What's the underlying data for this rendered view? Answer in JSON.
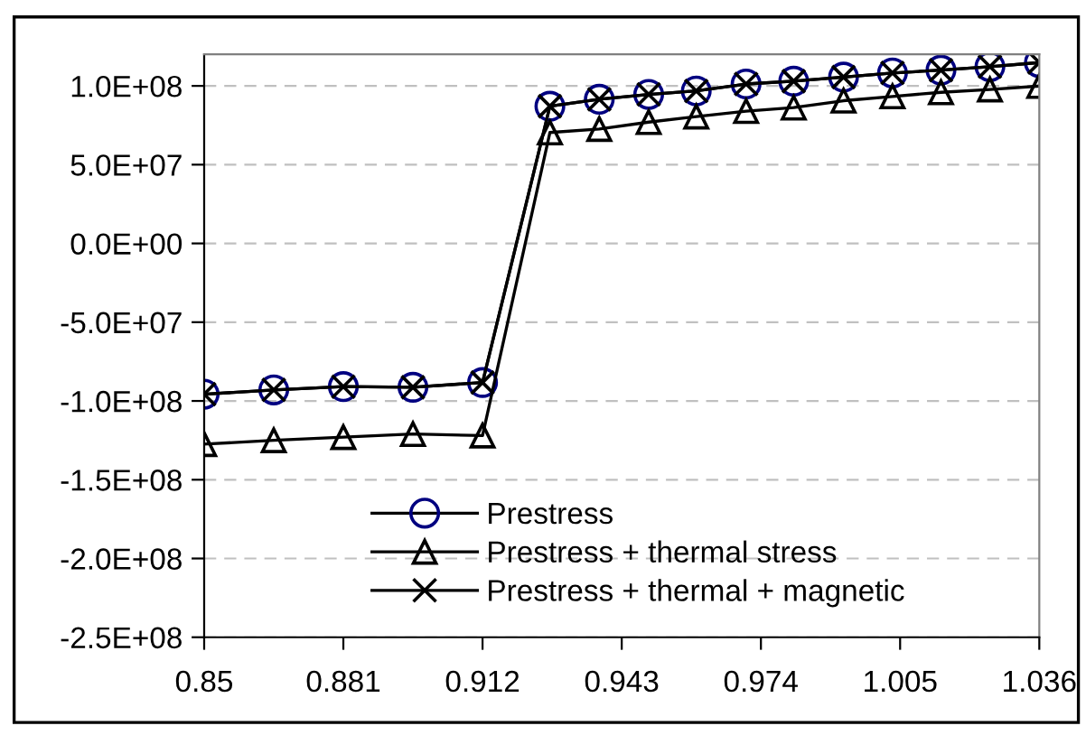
{
  "chart_data": {
    "type": "line",
    "x": [
      0.85,
      0.8655,
      0.881,
      0.8965,
      0.912,
      0.927,
      0.938,
      0.949,
      0.9596,
      0.9707,
      0.9813,
      0.9924,
      1.0033,
      1.0141,
      1.025,
      1.036
    ],
    "series": [
      {
        "name": "Prestress",
        "color": "#000080",
        "marker": "circle",
        "values": [
          -95700000.0,
          -93000000.0,
          -90900000.0,
          -91300000.0,
          -88300000.0,
          87100000.0,
          91500000.0,
          94600000.0,
          96800000.0,
          101200000.0,
          103000000.0,
          105600000.0,
          108200000.0,
          110000000.0,
          112200000.0,
          114800000.0
        ]
      },
      {
        "name": "Prestress + thermal stress",
        "color": "#000000",
        "marker": "triangle",
        "values": [
          -127400000.0,
          -125000000.0,
          -123000000.0,
          -121000000.0,
          -122000000.0,
          70400000.0,
          72600000.0,
          77000000.0,
          80500000.0,
          84000000.0,
          86200000.0,
          90600000.0,
          93300000.0,
          95900000.0,
          97700000.0,
          99900000.0
        ]
      },
      {
        "name": "Prestress + thermal + magnetic",
        "color": "#000000",
        "marker": "cross",
        "values": [
          -95700000.0,
          -93000000.0,
          -90900000.0,
          -91300000.0,
          -88300000.0,
          87100000.0,
          91500000.0,
          94600000.0,
          96800000.0,
          101200000.0,
          103000000.0,
          105600000.0,
          108200000.0,
          110000000.0,
          112200000.0,
          114800000.0
        ]
      }
    ],
    "xlim": [
      0.85,
      1.036
    ],
    "xticks": [
      0.85,
      0.881,
      0.912,
      0.943,
      0.974,
      1.005,
      1.036
    ],
    "ylim": [
      -250000000.0,
      120000000.0
    ],
    "yticks": [
      {
        "value": -250000000.0,
        "label": "-2.5E+08"
      },
      {
        "value": -200000000.0,
        "label": "-2.0E+08"
      },
      {
        "value": -150000000.0,
        "label": "-1.5E+08"
      },
      {
        "value": -100000000.0,
        "label": "-1.0E+08"
      },
      {
        "value": -50000000.0,
        "label": "-5.0E+07"
      },
      {
        "value": 0,
        "label": "0.0E+00"
      },
      {
        "value": 50000000.0,
        "label": "5.0E+07"
      },
      {
        "value": 100000000.0,
        "label": "1.0E+08"
      }
    ],
    "grid": "y",
    "legend": "bottom",
    "line_style": "solid"
  }
}
